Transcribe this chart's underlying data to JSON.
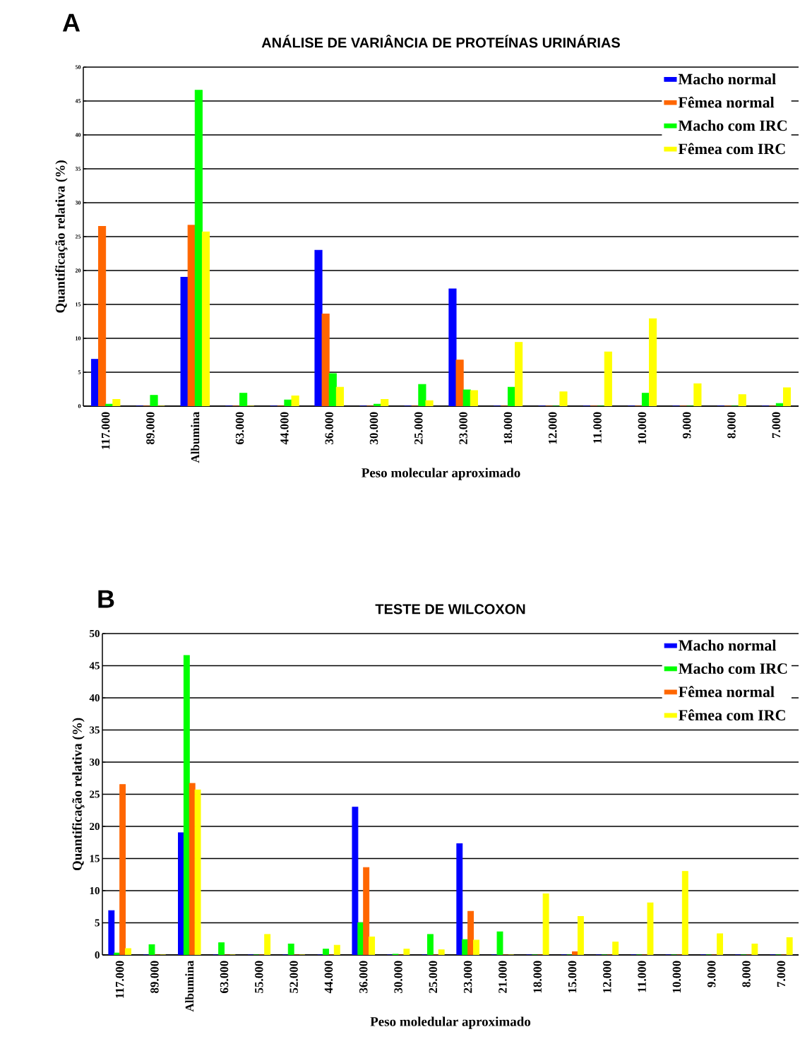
{
  "chart_data": [
    {
      "type": "bar",
      "title": "ANÁLISE DE VARIÂNCIA DE PROTEÍNAS URINÁRIAS",
      "annotations": [
        "A"
      ],
      "xlabel": "Peso molecular aproximado",
      "ylabel": "Quantificação relativa (%)",
      "categories": [
        "117.000",
        "89.000",
        "Albumina",
        "63.000",
        "44.000",
        "36.000",
        "30.000",
        "25.000",
        "23.000",
        "18.000",
        "12.000",
        "11.000",
        "10.000",
        "9.000",
        "8.000",
        "7.000"
      ],
      "series": [
        {
          "name": "Macho normal",
          "color": "#0000ff",
          "values": [
            6.9,
            0,
            19.0,
            0,
            0,
            23.0,
            0,
            0,
            17.3,
            0,
            0,
            0,
            0,
            0,
            0,
            0
          ]
        },
        {
          "name": "Fêmea normal",
          "color": "#ff6600",
          "values": [
            26.5,
            0,
            26.7,
            0,
            0,
            13.6,
            0,
            0,
            6.8,
            0,
            0,
            0,
            0,
            0,
            0,
            0
          ]
        },
        {
          "name": "Macho com IRC",
          "color": "#00ff00",
          "values": [
            0.3,
            1.6,
            46.6,
            1.9,
            0.9,
            4.8,
            0.3,
            3.2,
            2.4,
            2.8,
            0,
            0,
            1.9,
            0,
            0,
            0.4
          ]
        },
        {
          "name": "Fêmea com IRC",
          "color": "#ffff00",
          "values": [
            1.0,
            0,
            25.7,
            0,
            1.5,
            2.8,
            1.0,
            0.8,
            2.3,
            9.4,
            2.1,
            8.0,
            12.9,
            3.3,
            1.7,
            2.7
          ]
        }
      ],
      "ylim": [
        0,
        50
      ],
      "yticks": [
        0,
        5,
        10,
        15,
        20,
        25,
        30,
        35,
        40,
        45,
        50
      ],
      "grid": "y",
      "legend": "top right"
    },
    {
      "type": "bar",
      "title": "TESTE DE WILCOXON",
      "annotations": [
        "B"
      ],
      "xlabel": "Peso moledular aproximado",
      "ylabel": "Quantificação relativa (%)",
      "categories": [
        "117.000",
        "89.000",
        "Albumina",
        "63.000",
        "55.000",
        "52.000",
        "44.000",
        "36.000",
        "30.000",
        "25.000",
        "23.000",
        "21.000",
        "18.000",
        "15.000",
        "12.000",
        "11.000",
        "10.000",
        "9.000",
        "8.000",
        "7.000"
      ],
      "series": [
        {
          "name": "Macho normal",
          "color": "#0000ff",
          "values": [
            6.9,
            0,
            19.0,
            0,
            0,
            0,
            0,
            23.0,
            0,
            0,
            17.3,
            0,
            0,
            0,
            0,
            0,
            0,
            0,
            0,
            0
          ]
        },
        {
          "name": "Macho com IRC",
          "color": "#00ff00",
          "values": [
            0.3,
            1.6,
            46.6,
            1.9,
            0,
            1.7,
            0.9,
            5.0,
            0.1,
            3.2,
            2.4,
            3.6,
            0,
            0,
            0,
            0,
            0,
            0,
            0,
            0
          ]
        },
        {
          "name": "Fêmea normal",
          "color": "#ff6600",
          "values": [
            26.5,
            0,
            26.7,
            0,
            0,
            0,
            0,
            13.6,
            0,
            0,
            6.8,
            0,
            0,
            0.5,
            0,
            0,
            0,
            0,
            0,
            0
          ]
        },
        {
          "name": "Fêmea com IRC",
          "color": "#ffff00",
          "values": [
            1.0,
            0,
            25.7,
            0,
            3.2,
            0,
            1.5,
            2.8,
            0.9,
            0.8,
            2.3,
            0,
            9.5,
            6.0,
            2.0,
            8.1,
            13.0,
            3.3,
            1.7,
            2.7
          ]
        }
      ],
      "ylim": [
        0,
        50
      ],
      "yticks": [
        0,
        5,
        10,
        15,
        20,
        25,
        30,
        35,
        40,
        45,
        50
      ],
      "grid": "y",
      "legend": "top right"
    }
  ]
}
